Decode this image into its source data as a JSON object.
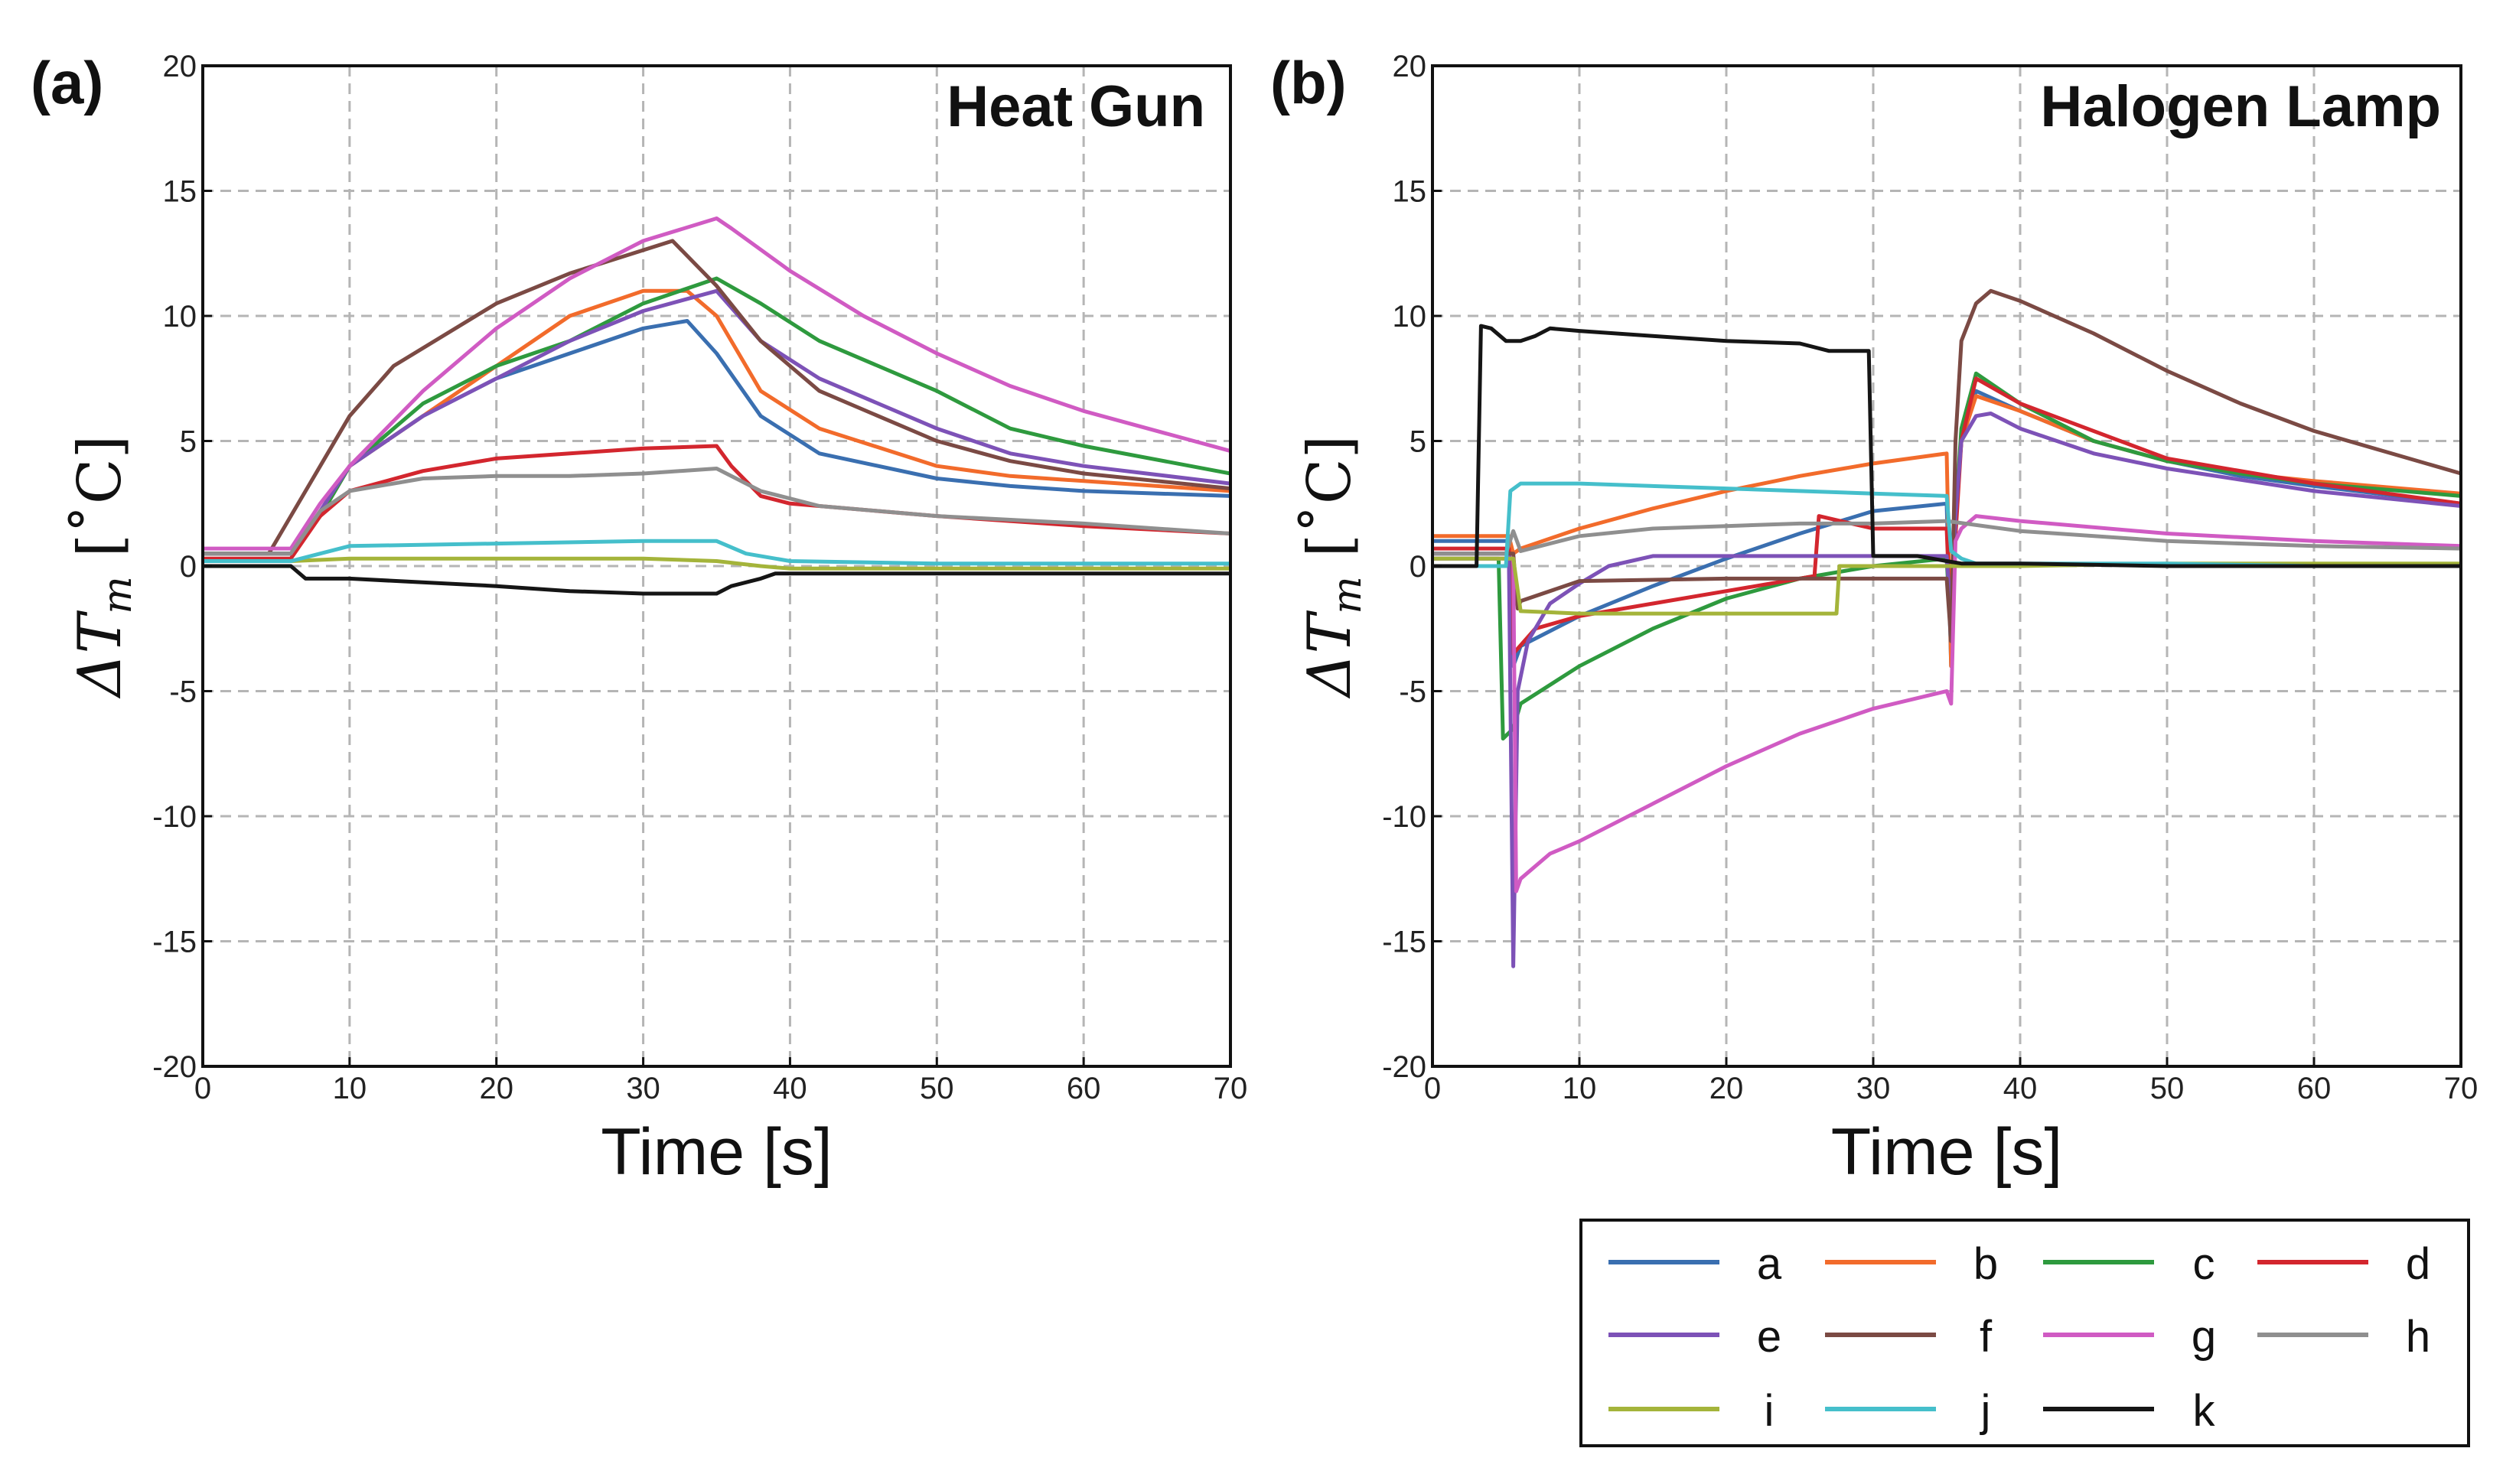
{
  "legend": {
    "entries": [
      {
        "key": "a",
        "color": "#3a6fb0"
      },
      {
        "key": "b",
        "color": "#f26b2b"
      },
      {
        "key": "c",
        "color": "#2e9a3e"
      },
      {
        "key": "d",
        "color": "#d3262e"
      },
      {
        "key": "e",
        "color": "#7d52b7"
      },
      {
        "key": "f",
        "color": "#7b4a44"
      },
      {
        "key": "g",
        "color": "#d05bc3"
      },
      {
        "key": "h",
        "color": "#8f8f8f"
      },
      {
        "key": "i",
        "color": "#a4b43a"
      },
      {
        "key": "j",
        "color": "#45bfcb"
      },
      {
        "key": "k",
        "color": "#151515"
      }
    ]
  },
  "chart_data": [
    {
      "type": "line",
      "panel_label": "(a)",
      "title": "Heat Gun",
      "xlabel": "Time [s]",
      "ylabel": "ΔT_m [˚C]",
      "xlim": [
        0,
        70
      ],
      "ylim": [
        -20,
        20
      ],
      "x_ticks": [
        0,
        10,
        20,
        30,
        40,
        50,
        60,
        70
      ],
      "y_ticks": [
        -20,
        -15,
        -10,
        -5,
        0,
        5,
        10,
        15,
        20
      ],
      "grid": true,
      "series": [
        {
          "name": "a",
          "x": [
            0,
            6,
            8,
            10,
            15,
            20,
            25,
            30,
            33,
            35,
            38,
            42,
            50,
            55,
            60,
            70
          ],
          "y": [
            0.5,
            0.5,
            2,
            4,
            6,
            7.5,
            8.5,
            9.5,
            9.8,
            8.5,
            6,
            4.5,
            3.5,
            3.2,
            3,
            2.8
          ]
        },
        {
          "name": "b",
          "x": [
            0,
            6,
            8,
            10,
            15,
            20,
            25,
            30,
            33,
            35,
            38,
            42,
            50,
            55,
            60,
            70
          ],
          "y": [
            0.5,
            0.5,
            2,
            4,
            6,
            8,
            10,
            11,
            11,
            10,
            7,
            5.5,
            4,
            3.6,
            3.4,
            3
          ]
        },
        {
          "name": "c",
          "x": [
            0,
            6,
            8,
            10,
            15,
            20,
            25,
            30,
            35,
            38,
            42,
            50,
            55,
            60,
            70
          ],
          "y": [
            0.5,
            0.5,
            2,
            4,
            6.5,
            8,
            9,
            10.5,
            11.5,
            10.5,
            9,
            7,
            5.5,
            4.8,
            3.7
          ]
        },
        {
          "name": "d",
          "x": [
            0,
            6,
            8,
            10,
            15,
            20,
            25,
            30,
            35,
            36,
            38,
            40,
            50,
            60,
            70
          ],
          "y": [
            0.3,
            0.3,
            2,
            3,
            3.8,
            4.3,
            4.5,
            4.7,
            4.8,
            4,
            2.8,
            2.5,
            2,
            1.6,
            1.3
          ]
        },
        {
          "name": "e",
          "x": [
            0,
            6,
            8,
            10,
            15,
            20,
            25,
            30,
            35,
            38,
            42,
            50,
            55,
            60,
            70
          ],
          "y": [
            0.5,
            0.5,
            2.2,
            4,
            6,
            7.5,
            9,
            10.2,
            11,
            9,
            7.5,
            5.5,
            4.5,
            4,
            3.3
          ]
        },
        {
          "name": "f",
          "x": [
            0,
            4.5,
            6,
            8,
            10,
            13,
            20,
            25,
            32,
            35,
            38,
            42,
            50,
            55,
            60,
            70
          ],
          "y": [
            0.5,
            0.5,
            2,
            4,
            6,
            8,
            10.5,
            11.7,
            13,
            11.2,
            9,
            7,
            5,
            4.2,
            3.7,
            3.1
          ]
        },
        {
          "name": "g",
          "x": [
            0,
            6,
            8,
            10,
            15,
            20,
            25,
            30,
            35,
            36,
            40,
            45,
            50,
            55,
            60,
            70
          ],
          "y": [
            0.7,
            0.7,
            2.5,
            4,
            7,
            9.5,
            11.5,
            13,
            13.9,
            13.5,
            11.8,
            10,
            8.5,
            7.2,
            6.2,
            4.6
          ]
        },
        {
          "name": "h",
          "x": [
            0,
            6,
            8,
            10,
            15,
            20,
            25,
            30,
            35,
            38,
            42,
            50,
            60,
            70
          ],
          "y": [
            0.5,
            0.5,
            2.2,
            3,
            3.5,
            3.6,
            3.6,
            3.7,
            3.9,
            3,
            2.4,
            2,
            1.7,
            1.3
          ]
        },
        {
          "name": "i",
          "x": [
            0,
            6,
            10,
            20,
            30,
            35,
            38,
            40,
            50,
            60,
            70
          ],
          "y": [
            0.2,
            0.2,
            0.3,
            0.3,
            0.3,
            0.2,
            0,
            -0.1,
            -0.1,
            -0.1,
            -0.1
          ]
        },
        {
          "name": "j",
          "x": [
            0,
            6,
            8,
            10,
            20,
            30,
            35,
            37,
            40,
            50,
            60,
            70
          ],
          "y": [
            0.2,
            0.2,
            0.5,
            0.8,
            0.9,
            1,
            1,
            0.5,
            0.2,
            0.1,
            0.1,
            0.1
          ]
        },
        {
          "name": "k",
          "x": [
            0,
            6,
            7,
            10,
            20,
            25,
            30,
            35,
            36,
            38,
            39,
            40,
            50,
            60,
            70
          ],
          "y": [
            0,
            0,
            -0.5,
            -0.5,
            -0.8,
            -1,
            -1.1,
            -1.1,
            -0.8,
            -0.5,
            -0.3,
            -0.3,
            -0.3,
            -0.3,
            -0.3
          ]
        }
      ]
    },
    {
      "type": "line",
      "panel_label": "(b)",
      "title": "Halogen Lamp",
      "xlabel": "Time [s]",
      "ylabel": "ΔT_m [˚C]",
      "xlim": [
        0,
        70
      ],
      "ylim": [
        -20,
        20
      ],
      "x_ticks": [
        0,
        10,
        20,
        30,
        40,
        50,
        60,
        70
      ],
      "y_ticks": [
        -20,
        -15,
        -10,
        -5,
        0,
        5,
        10,
        15,
        20
      ],
      "grid": true,
      "series": [
        {
          "name": "a",
          "x": [
            0,
            5.2,
            5.5,
            6,
            10,
            15,
            20,
            25,
            30,
            35,
            35.3,
            35.6,
            36,
            37,
            40,
            45,
            50,
            55,
            60,
            70
          ],
          "y": [
            1,
            1,
            -4,
            -3.2,
            -2,
            -0.8,
            0.3,
            1.3,
            2.2,
            2.5,
            -4,
            2,
            5,
            7,
            6.2,
            5,
            4.2,
            3.6,
            3.2,
            2.5
          ]
        },
        {
          "name": "b",
          "x": [
            0,
            5.2,
            5.5,
            6,
            10,
            15,
            20,
            25,
            30,
            35,
            35.3,
            35.6,
            36,
            37,
            40,
            45,
            50,
            55,
            60,
            70
          ],
          "y": [
            1.2,
            1.2,
            0.5,
            0.7,
            1.5,
            2.3,
            3,
            3.6,
            4.1,
            4.5,
            -4,
            2,
            5,
            6.8,
            6.2,
            5,
            4.2,
            3.7,
            3.4,
            2.9
          ]
        },
        {
          "name": "c",
          "x": [
            0,
            4.5,
            4.8,
            5.5,
            6,
            10,
            15,
            20,
            25,
            30,
            35,
            35.3,
            35.6,
            36,
            37,
            40,
            45,
            50,
            55,
            60,
            70
          ],
          "y": [
            0.3,
            0.3,
            -6.9,
            -6.5,
            -5.5,
            -4,
            -2.5,
            -1.3,
            -0.5,
            0,
            0.3,
            -3,
            2,
            5.5,
            7.7,
            6.5,
            5,
            4.2,
            3.7,
            3.3,
            2.8
          ]
        },
        {
          "name": "d",
          "x": [
            0,
            5.2,
            5.5,
            7,
            10,
            15,
            20,
            25,
            26,
            26.3,
            30,
            35,
            35.3,
            35.6,
            36,
            37,
            40,
            50,
            60,
            70
          ],
          "y": [
            0.7,
            0.7,
            -3.5,
            -2.5,
            -2,
            -1.5,
            -1,
            -0.5,
            -0.4,
            2,
            1.5,
            1.5,
            -3,
            1.2,
            5,
            7.5,
            6.5,
            4.3,
            3.3,
            2.5
          ]
        },
        {
          "name": "e",
          "x": [
            0,
            5.2,
            5.5,
            5.8,
            6.5,
            8,
            10,
            12,
            15,
            20,
            30,
            35,
            35.3,
            35.6,
            36,
            37,
            38,
            40,
            45,
            50,
            60,
            70
          ],
          "y": [
            0.5,
            0.5,
            -16,
            -5,
            -3,
            -1.5,
            -0.7,
            0,
            0.4,
            0.4,
            0.4,
            0.4,
            -2,
            2,
            5,
            6,
            6.1,
            5.5,
            4.5,
            3.9,
            3,
            2.4
          ]
        },
        {
          "name": "f",
          "x": [
            0,
            5.5,
            5.8,
            6,
            10,
            20,
            26,
            30,
            35,
            35.3,
            35.6,
            36,
            37,
            38,
            40,
            45,
            50,
            55,
            60,
            70
          ],
          "y": [
            0.5,
            0.5,
            -1.7,
            -1.4,
            -0.6,
            -0.5,
            -0.5,
            -0.5,
            -0.5,
            -3,
            5,
            9,
            10.5,
            11,
            10.6,
            9.3,
            7.8,
            6.5,
            5.4,
            3.7
          ]
        },
        {
          "name": "g",
          "x": [
            0,
            5.5,
            5.7,
            6,
            8,
            10,
            15,
            20,
            25,
            30,
            35,
            35.3,
            35.6,
            36,
            37,
            40,
            50,
            60,
            70
          ],
          "y": [
            0.3,
            0.3,
            -13,
            -12.5,
            -11.5,
            -11,
            -9.5,
            -8,
            -6.7,
            -5.7,
            -5,
            -5.5,
            1,
            1.5,
            2,
            1.8,
            1.3,
            1,
            0.8
          ]
        },
        {
          "name": "h",
          "x": [
            0,
            5,
            5.5,
            6,
            8,
            10,
            15,
            20,
            25,
            30,
            35,
            40,
            50,
            60,
            70
          ],
          "y": [
            0.5,
            0.5,
            1.4,
            0.6,
            0.9,
            1.2,
            1.5,
            1.6,
            1.7,
            1.7,
            1.8,
            1.4,
            1,
            0.8,
            0.7
          ]
        },
        {
          "name": "i",
          "x": [
            0,
            5.5,
            6,
            10,
            20,
            27.5,
            27.7,
            30,
            35,
            40,
            50,
            60,
            70
          ],
          "y": [
            0.3,
            0.3,
            -1.8,
            -1.9,
            -1.9,
            -1.9,
            0,
            0,
            0,
            0,
            0.1,
            0.1,
            0.1
          ]
        },
        {
          "name": "j",
          "x": [
            0,
            5,
            5.3,
            6,
            10,
            20,
            30,
            35,
            35.3,
            36,
            37,
            40,
            50,
            60,
            70
          ],
          "y": [
            0,
            0,
            3,
            3.3,
            3.3,
            3.1,
            2.9,
            2.8,
            0.6,
            0.3,
            0.1,
            0.1,
            0.1,
            0,
            0
          ]
        },
        {
          "name": "k",
          "x": [
            0,
            3,
            3.3,
            4,
            5,
            6,
            7,
            8,
            10,
            15,
            20,
            25,
            27,
            29.7,
            30,
            33,
            35,
            36,
            40,
            50,
            60,
            70
          ],
          "y": [
            0,
            0,
            9.6,
            9.5,
            9,
            9,
            9.2,
            9.5,
            9.4,
            9.2,
            9,
            8.9,
            8.6,
            8.6,
            0.4,
            0.4,
            0.2,
            0.1,
            0.1,
            0,
            0,
            0
          ]
        }
      ]
    }
  ]
}
